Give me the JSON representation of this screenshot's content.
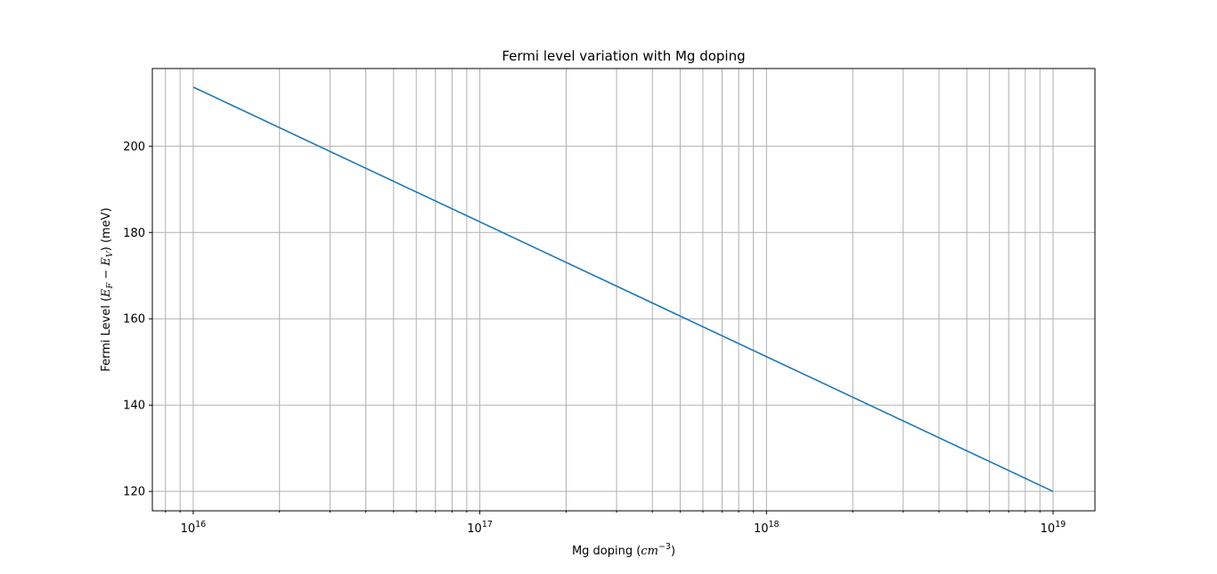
{
  "chart_data": {
    "type": "line",
    "title": "Fermi level variation with Mg doping",
    "xlabel": {
      "prefix": "Mg doping (",
      "math": "cm",
      "sup": "−3",
      "suffix": ")"
    },
    "ylabel": {
      "prefix": "Fermi Level (",
      "e1": "E",
      "s1": "F",
      "op": " − ",
      "e2": "E",
      "s2": "V",
      "suffix": ") (meV)"
    },
    "x_scale": "log",
    "xlim": [
      7200000000000000.0,
      1.4e+19
    ],
    "ylim": [
      115.5,
      218.0
    ],
    "grid": true,
    "x_major_ticks": [
      {
        "value": 1e+16,
        "base": "10",
        "exp": "16"
      },
      {
        "value": 1e+17,
        "base": "10",
        "exp": "17"
      },
      {
        "value": 1e+18,
        "base": "10",
        "exp": "18"
      },
      {
        "value": 1e+19,
        "base": "10",
        "exp": "19"
      }
    ],
    "y_ticks": [
      120,
      140,
      160,
      180,
      200
    ],
    "series": [
      {
        "color": "#1f77b4",
        "x": [
          1e+16,
          1e+19
        ],
        "y": [
          213.7,
          120.0
        ]
      }
    ]
  }
}
